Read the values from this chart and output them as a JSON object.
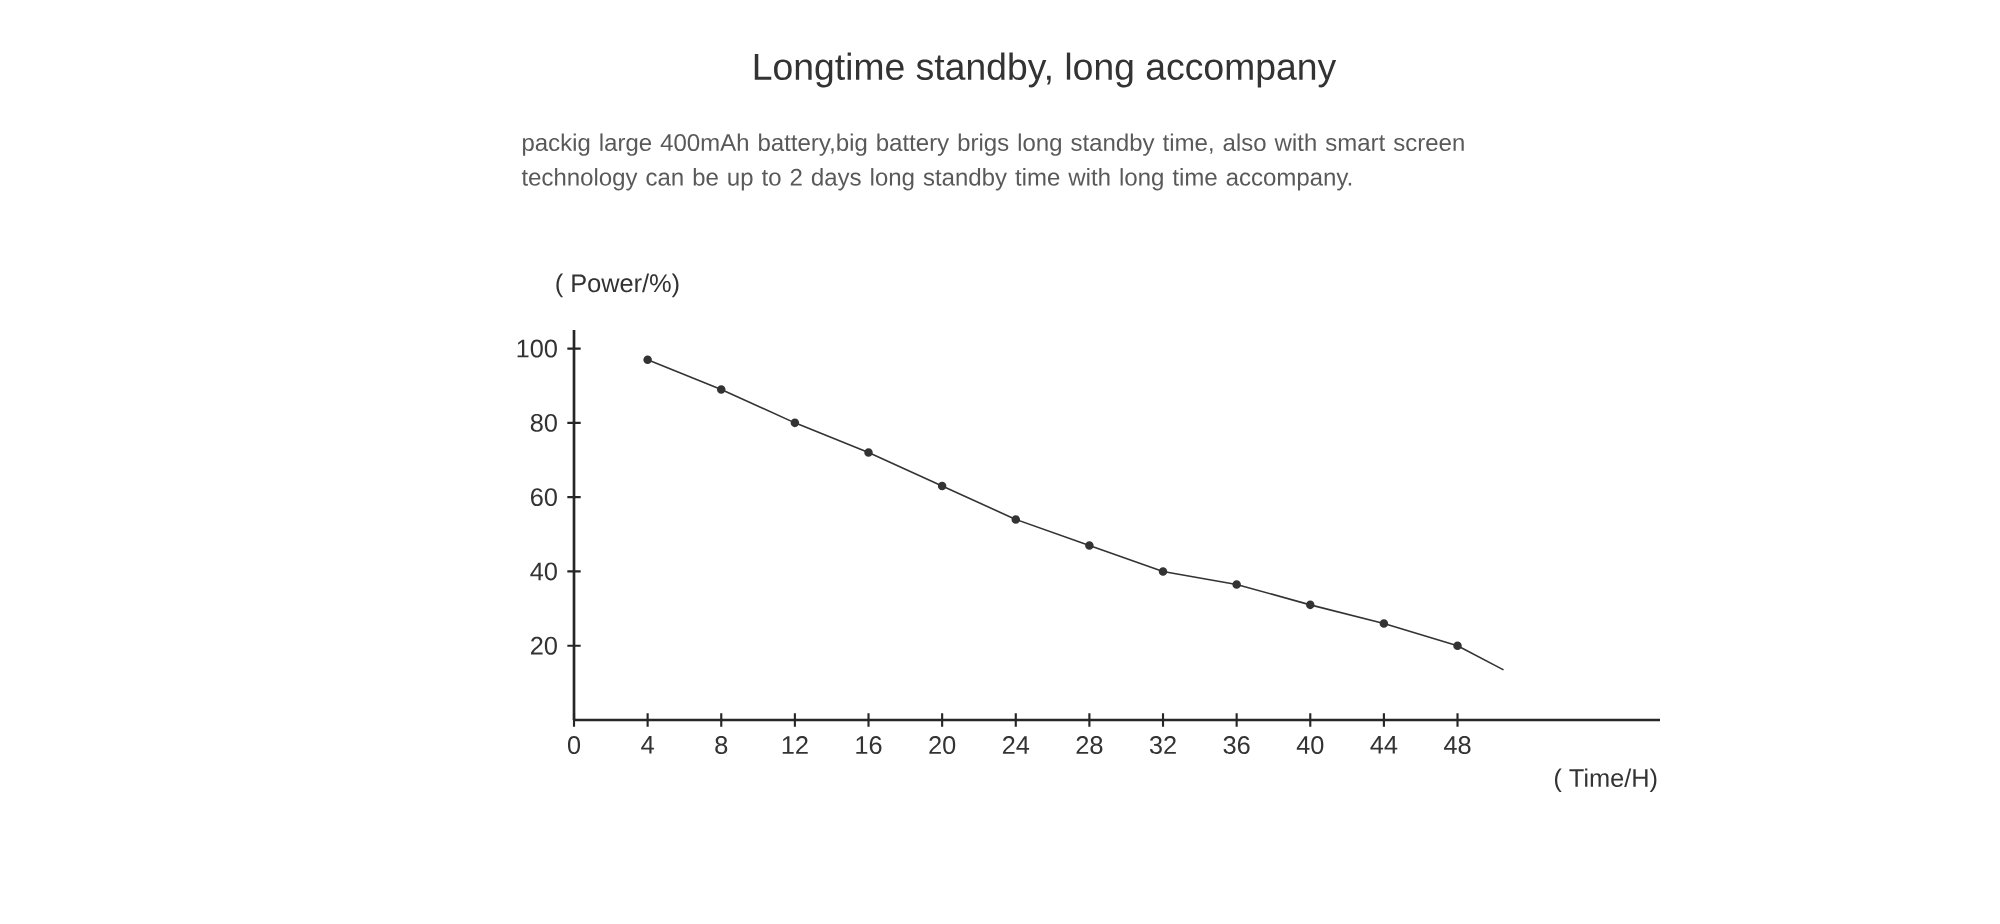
{
  "chart_data": {
    "type": "line",
    "title": "Longtime standby, long accompany",
    "subtitle": "packig large 400mAh battery,big battery brigs long standby time, also with smart screen technology can be up to 2 days long standby time with long time accompany.",
    "xlabel": "( Time/H)",
    "ylabel": "( Power/%)",
    "series": [
      {
        "color": "#333333",
        "marker": "circle",
        "x": [
          4,
          8,
          12,
          16,
          20,
          24,
          28,
          32,
          36,
          40,
          44,
          48
        ],
        "values": [
          97,
          89,
          80,
          72,
          63,
          54,
          47,
          40,
          36.5,
          31,
          26,
          20
        ]
      },
      {
        "color": "#333333",
        "marker": "none",
        "x": [
          48,
          50.5
        ],
        "values": [
          20,
          13.5
        ]
      }
    ],
    "xlim": [
      0,
      59
    ],
    "ylim": [
      0,
      105
    ],
    "xticks": [
      0,
      4,
      8,
      12,
      16,
      20,
      24,
      28,
      32,
      36,
      40,
      44,
      48
    ],
    "yticks": [
      20,
      40,
      60,
      80,
      100
    ]
  }
}
